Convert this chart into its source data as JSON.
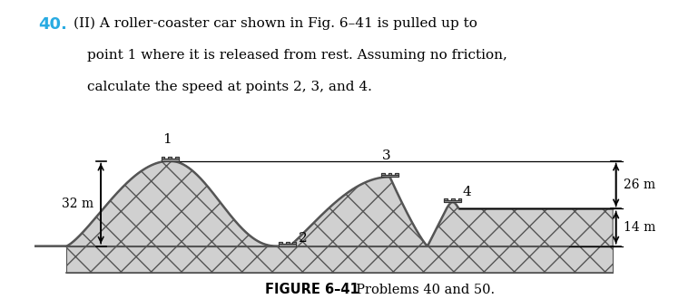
{
  "title_number": "40.",
  "title_number_color": "#29abe2",
  "line1": "(II) A roller-coaster car shown in Fig. 6–41 is pulled up to",
  "line2": "point 1 where it is released from rest. Assuming no friction,",
  "line3": "calculate the speed at points 2, 3, and 4.",
  "figure_caption_bold": "FIGURE 6–41",
  "figure_caption_normal": "  Problems 40 and 50.",
  "hatch_pattern": "x",
  "fill_color": "#d0d0d0",
  "outline_color": "#555555",
  "background_color": "#ffffff",
  "label_32m": "32 m",
  "label_26m": "26 m",
  "label_14m": "14 m",
  "car_color": "#888888",
  "arrow_color": "#000000"
}
